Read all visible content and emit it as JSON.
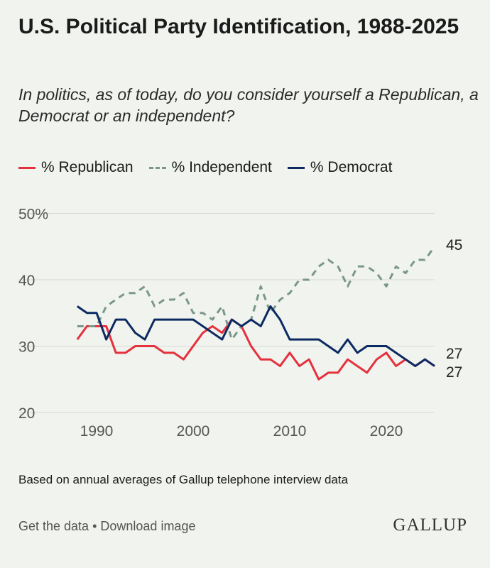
{
  "title": "U.S. Political Party Identification, 1988-2025",
  "subtitle": "In politics, as of today, do you consider yourself a Republican, a Democrat or an independent?",
  "footer": {
    "note": "Based on annual averages of Gallup telephone interview data",
    "get_data": "Get the data",
    "separator": " • ",
    "download": "Download image",
    "logo": "GALLUP"
  },
  "chart_data": {
    "type": "line",
    "x": [
      1988,
      1989,
      1990,
      1991,
      1992,
      1993,
      1994,
      1995,
      1996,
      1997,
      1998,
      1999,
      2000,
      2001,
      2002,
      2003,
      2004,
      2005,
      2006,
      2007,
      2008,
      2009,
      2010,
      2011,
      2012,
      2013,
      2014,
      2015,
      2016,
      2017,
      2018,
      2019,
      2020,
      2021,
      2022,
      2023,
      2024,
      2025
    ],
    "series": [
      {
        "name": "% Republican",
        "color": "#e5303d",
        "dashed": false,
        "values": [
          31,
          33,
          33,
          33,
          29,
          29,
          30,
          30,
          30,
          29,
          29,
          28,
          30,
          32,
          33,
          32,
          34,
          33,
          30,
          28,
          28,
          27,
          29,
          27,
          28,
          25,
          26,
          26,
          28,
          27,
          26,
          28,
          29,
          27,
          28,
          27,
          28,
          27
        ],
        "end_label": "27"
      },
      {
        "name": "% Independent",
        "color": "#7b978d",
        "dashed": true,
        "values": [
          33,
          33,
          33,
          36,
          37,
          38,
          38,
          39,
          36,
          37,
          37,
          38,
          35,
          35,
          34,
          36,
          31,
          33,
          34,
          39,
          35,
          37,
          38,
          40,
          40,
          42,
          43,
          42,
          39,
          42,
          42,
          41,
          39,
          42,
          41,
          43,
          43,
          45
        ],
        "end_label": "45"
      },
      {
        "name": "% Democrat",
        "color": "#0c2a62",
        "dashed": false,
        "values": [
          36,
          35,
          35,
          31,
          34,
          34,
          32,
          31,
          34,
          34,
          34,
          34,
          34,
          33,
          32,
          31,
          34,
          33,
          34,
          33,
          36,
          34,
          31,
          31,
          31,
          31,
          30,
          29,
          31,
          29,
          30,
          30,
          30,
          29,
          28,
          27,
          28,
          27
        ],
        "end_label": "27"
      }
    ],
    "ylim": [
      20,
      50
    ],
    "yticks": [
      "20",
      "30",
      "40",
      "50%"
    ],
    "xticks": [
      "1990",
      "2000",
      "2010",
      "2020"
    ],
    "grid": true,
    "legend": "top"
  }
}
